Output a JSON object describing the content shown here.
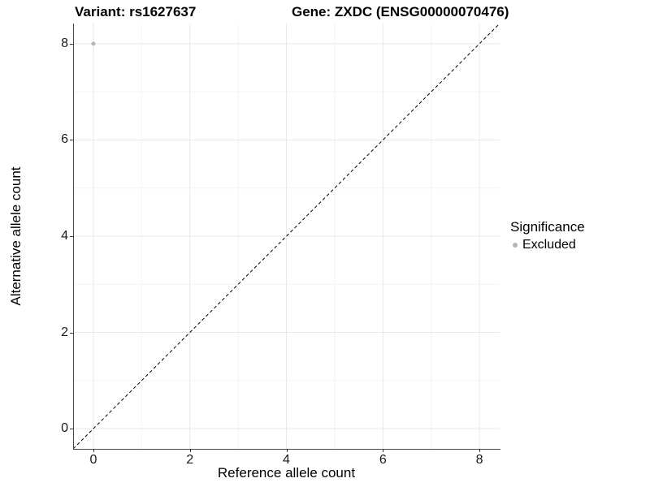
{
  "chart_data": {
    "type": "scatter",
    "title_left": "Variant: rs1627637",
    "title_right": "Gene: ZXDC (ENSG00000070476)",
    "xlabel": "Reference allele count",
    "ylabel": "Alternative allele count",
    "xlim": [
      -0.42,
      8.42
    ],
    "ylim": [
      -0.42,
      8.42
    ],
    "xticks": [
      0,
      2,
      4,
      6,
      8
    ],
    "yticks": [
      0,
      2,
      4,
      6,
      8
    ],
    "minor_xticks": [
      1,
      3,
      5,
      7
    ],
    "minor_yticks": [
      1,
      3,
      5,
      7
    ],
    "grid": true,
    "points": [
      {
        "x": 0,
        "y": 8,
        "series": "Excluded"
      }
    ],
    "point_radius": 2.5,
    "reference_line": {
      "type": "identity",
      "style": "dashed"
    },
    "legend": {
      "title": "Significance",
      "position": "right",
      "items": [
        {
          "label": "Excluded",
          "color": "#b4b4b4"
        }
      ]
    },
    "colors": {
      "background": "#ffffff",
      "grid_major": "#e8e8e8",
      "grid_minor": "#f4f4f4",
      "axis_line": "#474747",
      "tick_mark": "#333333",
      "dashed_line": "#000000",
      "point": "#b4b4b4",
      "text": "#000000"
    }
  }
}
